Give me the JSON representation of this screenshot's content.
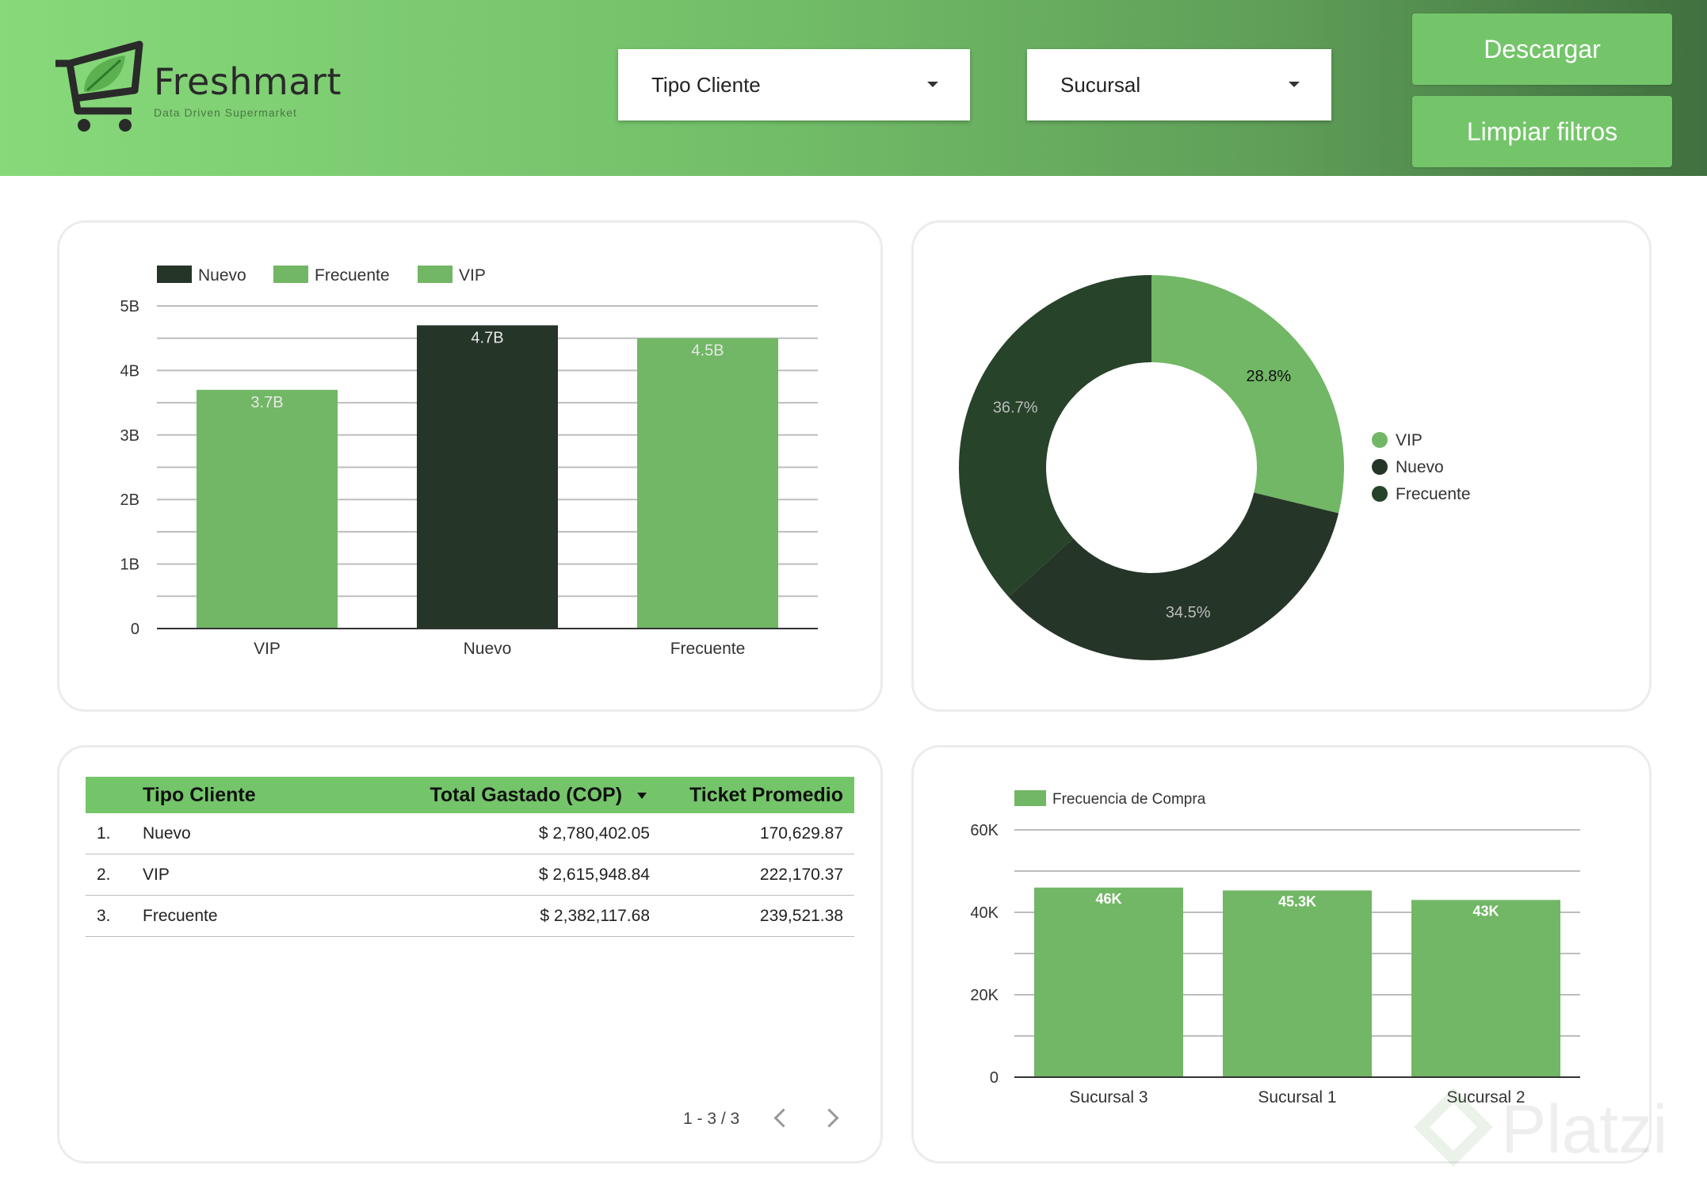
{
  "header": {
    "brand": "Freshmart",
    "tagline": "Data Driven Supermarket",
    "filters": [
      {
        "label": "Tipo Cliente",
        "icon": "caret-down-icon"
      },
      {
        "label": "Sucursal",
        "icon": "caret-down-icon"
      }
    ],
    "buttons": {
      "download": "Descargar",
      "clear": "Limpiar filtros"
    }
  },
  "colors": {
    "light_green": "#71b765",
    "dark_green": "#253528",
    "forest_green": "#27432a",
    "header_green": "#74c56a"
  },
  "chart_data": [
    {
      "type": "bar",
      "categories": [
        "VIP",
        "Nuevo",
        "Frecuente"
      ],
      "values": [
        3.7,
        4.7,
        4.5
      ],
      "value_labels": [
        "3.7B",
        "4.7B",
        "4.5B"
      ],
      "legend": [
        "Nuevo",
        "Frecuente",
        "VIP"
      ],
      "legend_placement": "top-left",
      "yticks": [
        "0",
        "1B",
        "2B",
        "3B",
        "4B",
        "5B"
      ],
      "ylim": [
        0,
        5
      ],
      "grid": true
    },
    {
      "type": "pie",
      "donut": true,
      "labels": [
        "VIP",
        "Nuevo",
        "Frecuente"
      ],
      "values": [
        28.8,
        34.5,
        36.7
      ],
      "value_labels": [
        "28.8%",
        "34.5%",
        "36.7%"
      ],
      "legend_placement": "right"
    },
    {
      "type": "table",
      "columns": [
        "Tipo Cliente",
        "Total Gastado (COP)",
        "Ticket Promedio"
      ],
      "sort_icon": "sort-desc-icon",
      "rows": [
        {
          "index": "1.",
          "tipo": "Nuevo",
          "total": "$ 2,780,402.05",
          "ticket": "170,629.87"
        },
        {
          "index": "2.",
          "tipo": "VIP",
          "total": "$ 2,615,948.84",
          "ticket": "222,170.37"
        },
        {
          "index": "3.",
          "tipo": "Frecuente",
          "total": "$ 2,382,117.68",
          "ticket": "239,521.38"
        }
      ],
      "pagination": "1 - 3 / 3"
    },
    {
      "type": "bar",
      "categories": [
        "Sucursal 3",
        "Sucursal 1",
        "Sucursal 2"
      ],
      "series": [
        {
          "name": "Frecuencia de Compra",
          "values": [
            46000,
            45300,
            43000
          ]
        }
      ],
      "value_labels": [
        "46K",
        "45.3K",
        "43K"
      ],
      "yticks": [
        "0",
        "20K",
        "40K",
        "60K"
      ],
      "ylim": [
        0,
        60000
      ],
      "grid": true,
      "legend_placement": "top-left"
    }
  ],
  "watermark": "Platzi"
}
